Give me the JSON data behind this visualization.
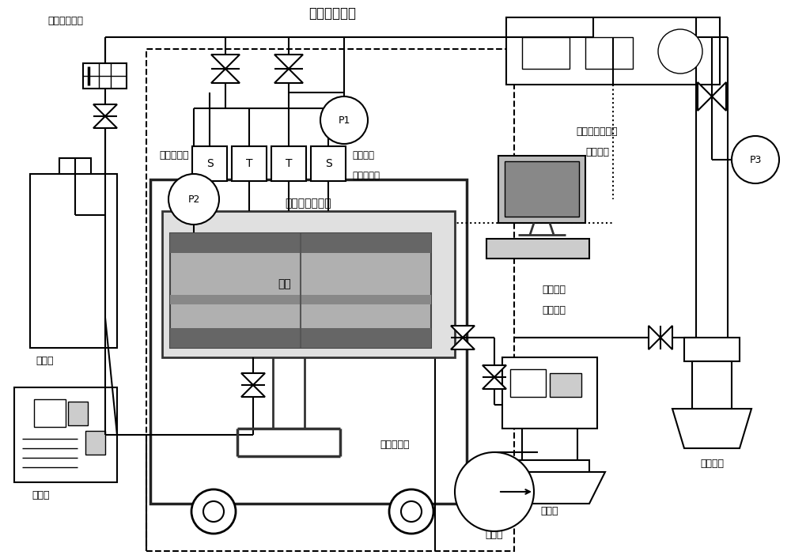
{
  "bg_color": "#ffffff",
  "labels": {
    "gas_flow_meter": "气、液流量计",
    "temp_control": "温度控制系统",
    "pressure_sensor": "压力传感器",
    "thermistor_line1": "热敏电阻",
    "thermistor_line2": "及温度探头",
    "reactor": "高压低温反应釜",
    "piston": "活塞",
    "displacement": "位移传感器",
    "gas_tank": "储气罐",
    "pump": "恒压泵",
    "dc_power_line1": "直流电源及电路",
    "dc_power_line2": "控制系统",
    "data_center_line1": "数据采集",
    "data_center_line2": "处理中心",
    "injection_pump": "注气泵",
    "vacuum_pump": "真空泵",
    "high_pressure_tank": "高压气瓶"
  }
}
